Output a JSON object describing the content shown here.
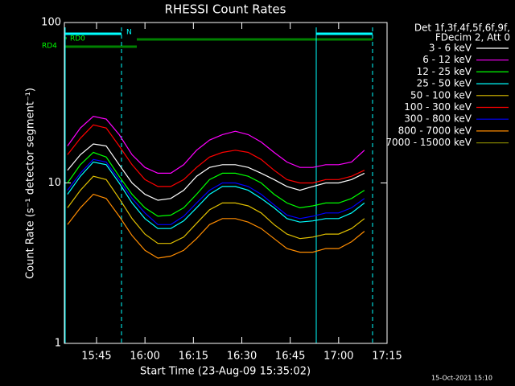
{
  "chart_data": {
    "type": "line",
    "title": "RHESSI Count Rates",
    "xlabel": "Start Time (23-Aug-09 15:35:02)",
    "ylabel": "Count Rate (s⁻¹ detector segment⁻¹)",
    "legend_title": [
      "Det 1f,3f,4f,5f,6f,9f,",
      "FDecim 2, Att 0"
    ],
    "footer": "15-Oct-2021 15:10",
    "annotations": [
      "RD0",
      "RD4",
      "N"
    ],
    "log_y": true,
    "legend": "right",
    "xlim": [
      "15:35:02",
      "17:15"
    ],
    "xticks": [
      "15:45",
      "16:00",
      "16:15",
      "16:30",
      "16:45",
      "17:00",
      "17:15"
    ],
    "ylim": [
      1,
      100
    ],
    "yticks": [
      1,
      10,
      100
    ],
    "x": [
      "15:36",
      "15:40",
      "15:44",
      "15:48",
      "15:52",
      "15:56",
      "16:00",
      "16:04",
      "16:08",
      "16:12",
      "16:16",
      "16:20",
      "16:24",
      "16:28",
      "16:32",
      "16:36",
      "16:40",
      "16:44",
      "16:48",
      "16:52",
      "16:56",
      "17:00",
      "17:04",
      "17:08"
    ],
    "series": [
      {
        "name": "3 - 6 keV",
        "color": "#ffffff",
        "values": [
          12,
          15,
          17.5,
          17,
          13,
          10,
          8.5,
          7.8,
          8,
          9,
          11,
          12.5,
          13,
          13,
          12.5,
          11.5,
          10.5,
          9.5,
          9,
          9.5,
          10,
          10,
          10.5,
          11.5
        ]
      },
      {
        "name": "6 - 12 keV",
        "color": "#ff00ff",
        "values": [
          17,
          22,
          26,
          25,
          20,
          15,
          12.5,
          11.5,
          11.5,
          13,
          16,
          18.5,
          20,
          21,
          20,
          18,
          15.5,
          13.5,
          12.5,
          12.5,
          13,
          13,
          13.5,
          16
        ]
      },
      {
        "name": "12 - 25 keV",
        "color": "#00ff00",
        "values": [
          10,
          13,
          15.5,
          14.5,
          11,
          8.5,
          7,
          6.2,
          6.3,
          7,
          8.5,
          10.5,
          11.5,
          11.5,
          11,
          10,
          8.5,
          7.5,
          7,
          7.2,
          7.5,
          7.5,
          8,
          9
        ]
      },
      {
        "name": "25 - 50 keV",
        "color": "#00ffff",
        "values": [
          8.5,
          11,
          13.5,
          13,
          10,
          7.5,
          6,
          5.2,
          5.2,
          5.8,
          7,
          8.5,
          9.5,
          9.5,
          9,
          8,
          7,
          6,
          5.7,
          5.8,
          6,
          6,
          6.5,
          7.5
        ]
      },
      {
        "name": "50 - 100 keV",
        "color": "#e0c000",
        "values": [
          7,
          9,
          11,
          10.5,
          8,
          6,
          4.8,
          4.2,
          4.2,
          4.6,
          5.6,
          6.8,
          7.5,
          7.5,
          7.2,
          6.5,
          5.5,
          4.8,
          4.5,
          4.6,
          4.8,
          4.8,
          5.2,
          6
        ]
      },
      {
        "name": "100 - 300 keV",
        "color": "#ff0000",
        "values": [
          15,
          19,
          23,
          22,
          17,
          13,
          10.5,
          9.5,
          9.5,
          10.5,
          12.5,
          14.5,
          15.5,
          16,
          15.5,
          14,
          12,
          10.5,
          10,
          10,
          10.5,
          10.5,
          11,
          12
        ]
      },
      {
        "name": "300 - 800 keV",
        "color": "#0000ff",
        "values": [
          9,
          11.5,
          14,
          13.5,
          10.5,
          8,
          6.5,
          5.5,
          5.5,
          6.2,
          7.5,
          9,
          10,
          10,
          9.5,
          8.5,
          7.3,
          6.3,
          6,
          6.2,
          6.5,
          6.5,
          7,
          8
        ]
      },
      {
        "name": "800 - 7000 keV",
        "color": "#ff8c00",
        "values": [
          5.5,
          7,
          8.5,
          8,
          6.2,
          4.7,
          3.8,
          3.4,
          3.5,
          3.8,
          4.5,
          5.5,
          6,
          6,
          5.7,
          5.2,
          4.5,
          3.9,
          3.7,
          3.7,
          3.9,
          3.9,
          4.3,
          5
        ]
      },
      {
        "name": "7000 - 15000 keV",
        "color": "#808000",
        "values": [
          null,
          null,
          null,
          null,
          null,
          null,
          null,
          null,
          null,
          null,
          null,
          null,
          null,
          null,
          null,
          null,
          null,
          null,
          null,
          null,
          null,
          null,
          null,
          null
        ]
      }
    ]
  }
}
